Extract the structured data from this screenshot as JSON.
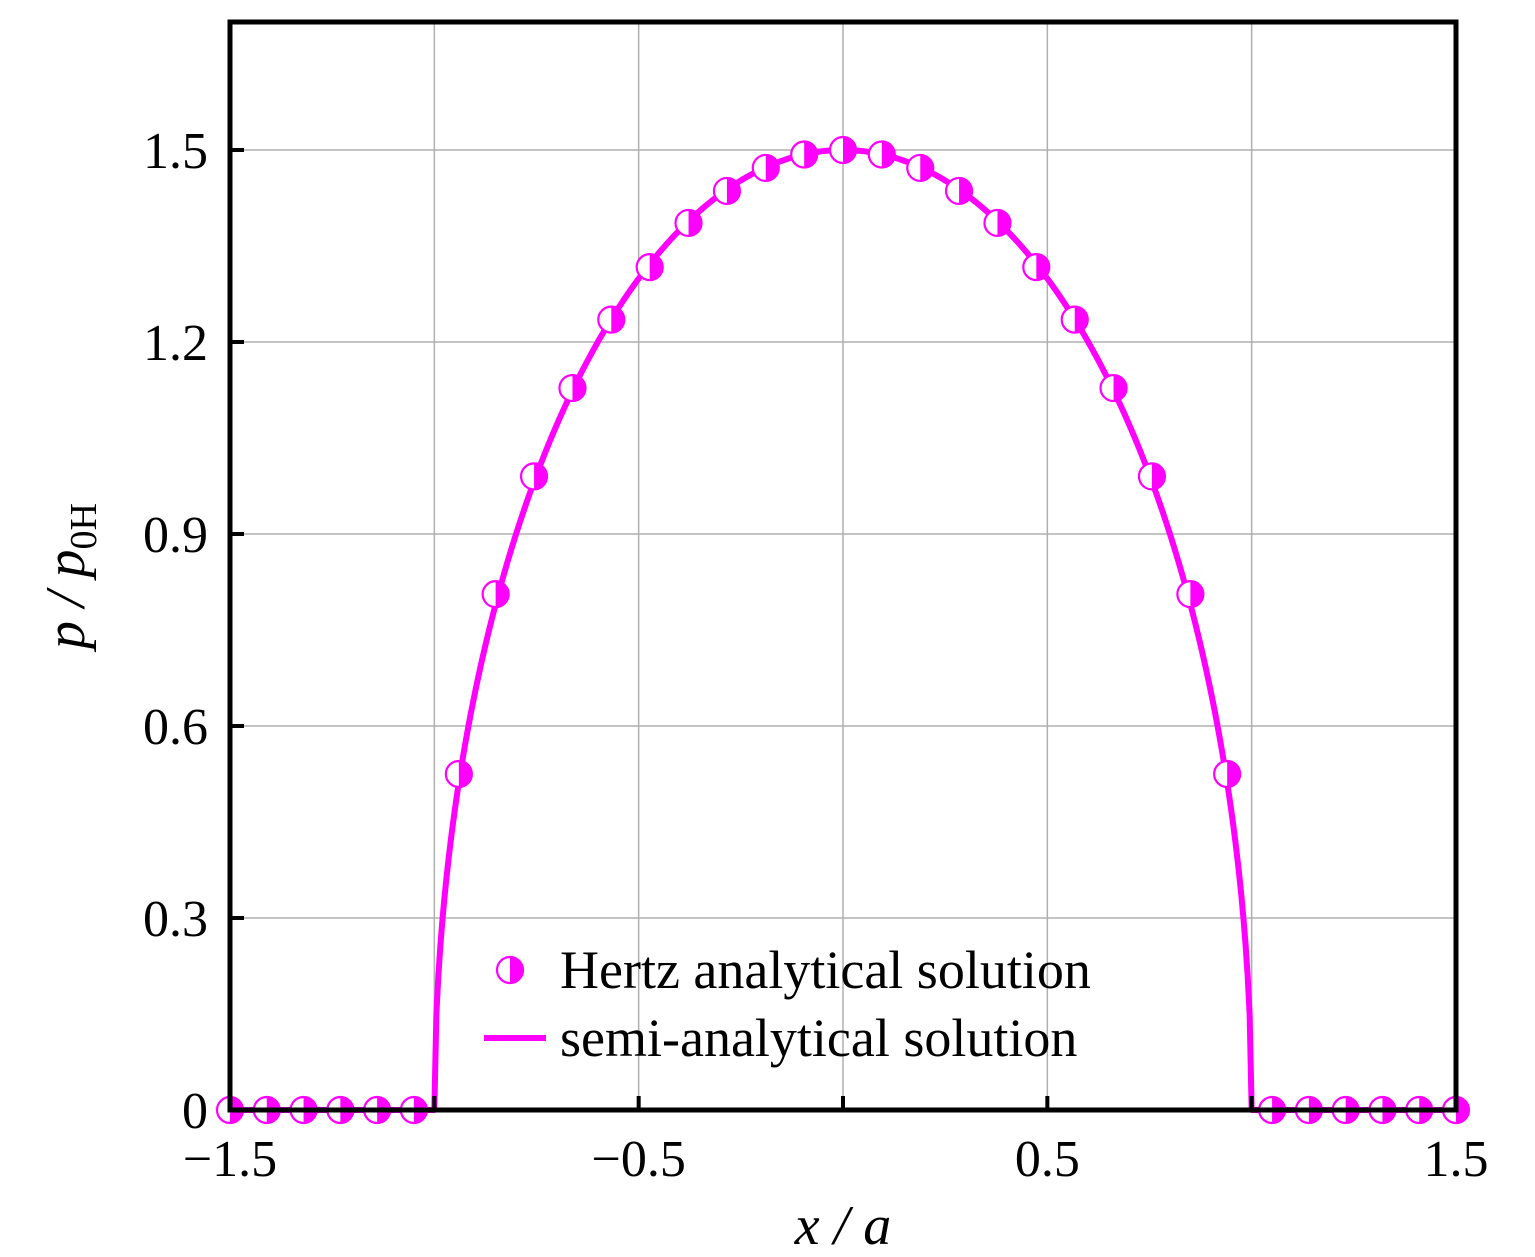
{
  "chart_data": {
    "type": "line",
    "title": "",
    "xlabel": "x / a",
    "ylabel": "p / p0H",
    "xlim": [
      -1.5,
      1.5
    ],
    "ylim": [
      0,
      1.7
    ],
    "xticks": [
      -1.5,
      -0.5,
      0.5,
      1.5
    ],
    "xtick_labels": [
      "−1.5",
      "−0.5",
      "0.5",
      "1.5"
    ],
    "yticks": [
      0,
      0.3,
      0.6,
      0.9,
      1.2,
      1.5
    ],
    "ytick_labels": [
      "0",
      "0.3",
      "0.6",
      "0.9",
      "1.2",
      "1.5"
    ],
    "grid": true,
    "legend_position": "lower-center",
    "colors": {
      "series": "#ff00ff",
      "grid": "#b0b0b0",
      "axis": "#000000"
    },
    "series": [
      {
        "name": "Hertz analytical solution",
        "style": "marker",
        "marker": "half-filled-circle",
        "x": [
          -1.5,
          -1.41,
          -1.32,
          -1.23,
          -1.14,
          -1.05,
          -0.94,
          -0.85,
          -0.756,
          -0.662,
          -0.567,
          -0.473,
          -0.378,
          -0.284,
          -0.189,
          -0.095,
          0.0,
          0.095,
          0.189,
          0.284,
          0.378,
          0.473,
          0.567,
          0.662,
          0.756,
          0.85,
          0.94,
          1.05,
          1.14,
          1.23,
          1.32,
          1.41,
          1.5
        ],
        "y": [
          0,
          0,
          0,
          0,
          0,
          0,
          0.525,
          0.806,
          0.99,
          1.128,
          1.235,
          1.317,
          1.386,
          1.436,
          1.472,
          1.493,
          1.5,
          1.493,
          1.472,
          1.436,
          1.386,
          1.317,
          1.235,
          1.128,
          0.99,
          0.806,
          0.525,
          0,
          0,
          0,
          0,
          0,
          0
        ]
      },
      {
        "name": "semi-analytical solution",
        "style": "line",
        "formula": "p/p0H = 1.5*sqrt(1-(x/a)^2) for |x/a|<=1, else 0"
      }
    ]
  },
  "axis_label_parts": {
    "x_main": "x / a",
    "y_main": "p / p",
    "y_sub": "0H"
  }
}
